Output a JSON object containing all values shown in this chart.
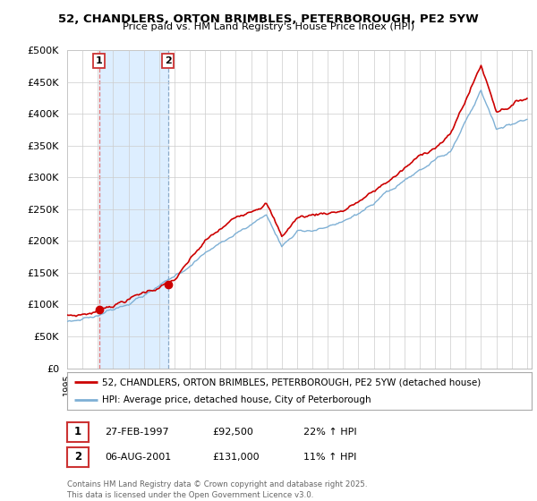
{
  "title": "52, CHANDLERS, ORTON BRIMBLES, PETERBOROUGH, PE2 5YW",
  "subtitle": "Price paid vs. HM Land Registry's House Price Index (HPI)",
  "legend_line1": "52, CHANDLERS, ORTON BRIMBLES, PETERBOROUGH, PE2 5YW (detached house)",
  "legend_line2": "HPI: Average price, detached house, City of Peterborough",
  "transaction1_label": "1",
  "transaction1_date": "27-FEB-1997",
  "transaction1_price": "£92,500",
  "transaction1_hpi": "22% ↑ HPI",
  "transaction2_label": "2",
  "transaction2_date": "06-AUG-2001",
  "transaction2_price": "£131,000",
  "transaction2_hpi": "11% ↑ HPI",
  "footer": "Contains HM Land Registry data © Crown copyright and database right 2025.\nThis data is licensed under the Open Government Licence v3.0.",
  "price_color": "#cc0000",
  "hpi_color": "#7eb0d5",
  "shade_color": "#ddeeff",
  "ylim_min": 0,
  "ylim_max": 500000,
  "ytick_step": 50000,
  "background_color": "#ffffff"
}
